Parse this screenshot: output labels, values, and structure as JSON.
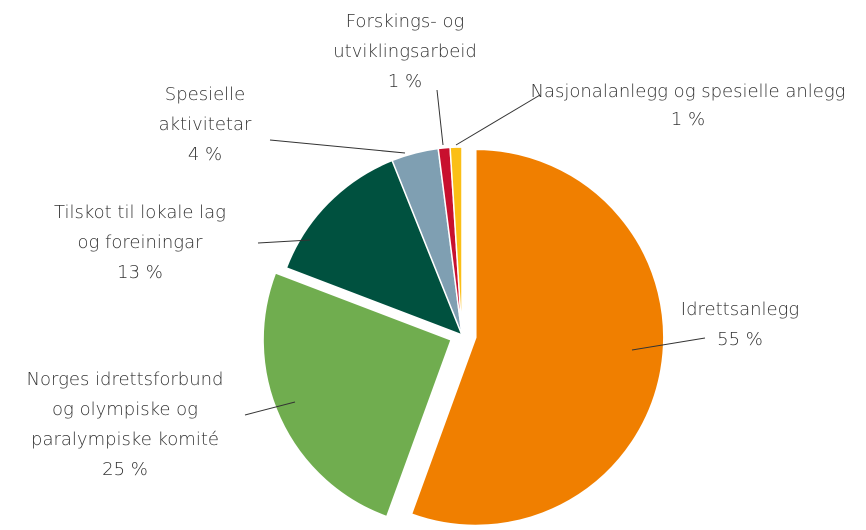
{
  "chart_data": {
    "type": "pie",
    "categories": [
      [
        "Idrettsanlegg"
      ],
      [
        "Norges idrettsforbund",
        "og  olympiske og",
        "paralympiske komité"
      ],
      [
        "Tilskot til lokale lag",
        "og foreiningar"
      ],
      [
        "Spesielle",
        "aktivitetar"
      ],
      [
        "Forskings- og",
        "utviklingsarbeid"
      ],
      [
        "Nasjonalanlegg og spesielle anlegg"
      ]
    ],
    "values": [
      55,
      25,
      13,
      4,
      1,
      1
    ],
    "value_labels": [
      "55 %",
      "25 %",
      "13 %",
      "4 %",
      "1 %",
      "1 %"
    ],
    "colors": [
      "#f07f00",
      "#70ad4f",
      "#00513f",
      "#7f9fb2",
      "#c8102e",
      "#fbbf16"
    ]
  }
}
